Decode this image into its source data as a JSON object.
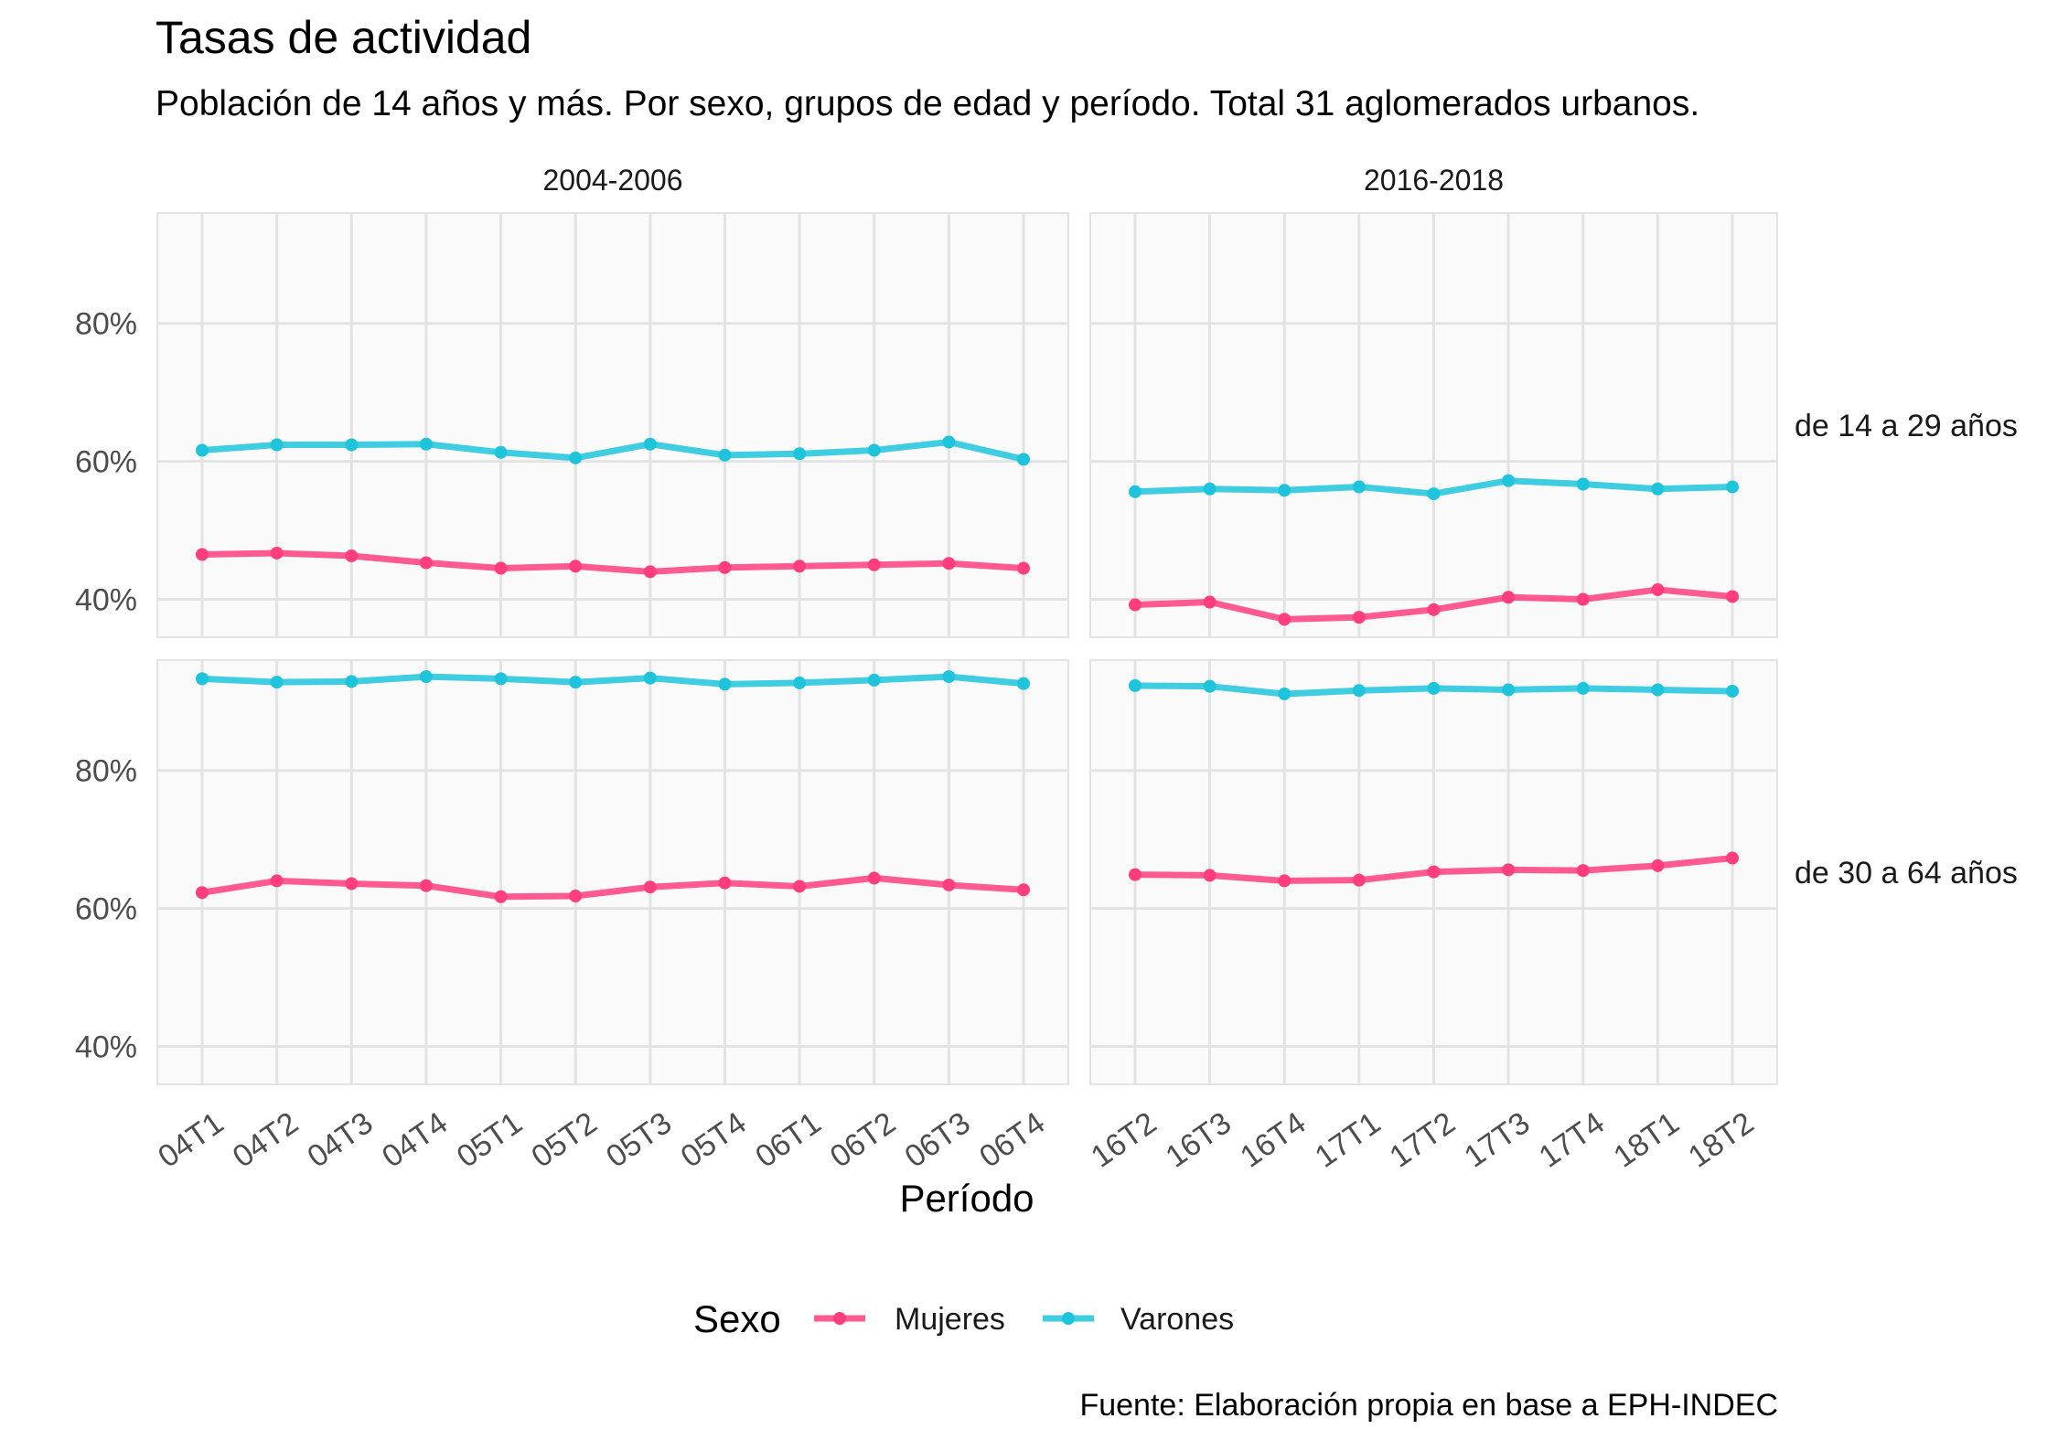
{
  "chart_data": {
    "type": "line",
    "title": "Tasas de actividad",
    "subtitle": "Población de 14 años y más. Por sexo, grupos de edad y período. Total 31 aglomerados urbanos.",
    "xlabel": "Período",
    "ylabel": "",
    "caption": "Fuente: Elaboración propia en base a EPH-INDEC",
    "legend": {
      "title": "Sexo",
      "position": "bottom"
    },
    "y_ticks": [
      "40%",
      "60%",
      "80%"
    ],
    "y_tick_values": [
      40,
      60,
      80
    ],
    "grid": true,
    "series_colors": {
      "Mujeres": "#ff3d7f",
      "Varones": "#1ec4dc"
    },
    "columns": [
      {
        "label": "2004-2006",
        "categories": [
          "04T1",
          "04T2",
          "04T3",
          "04T4",
          "05T1",
          "05T2",
          "05T3",
          "05T4",
          "06T1",
          "06T2",
          "06T3",
          "06T4"
        ]
      },
      {
        "label": "2016-2018",
        "categories": [
          "16T2",
          "16T3",
          "16T4",
          "17T1",
          "17T2",
          "17T3",
          "17T4",
          "18T1",
          "18T2"
        ]
      }
    ],
    "rows": [
      {
        "label": "de 14 a 29 años",
        "ylim": [
          34.5,
          96.0
        ]
      },
      {
        "label": "de 30 a 64 años",
        "ylim": [
          34.5,
          96.0
        ]
      }
    ],
    "panels": [
      {
        "row": 0,
        "col": 0,
        "series": [
          {
            "name": "Mujeres",
            "values": [
              46.5,
              46.7,
              46.3,
              45.3,
              44.5,
              44.8,
              44.0,
              44.6,
              44.8,
              45.0,
              45.2,
              44.5
            ]
          },
          {
            "name": "Varones",
            "values": [
              61.6,
              62.4,
              62.4,
              62.5,
              61.3,
              60.5,
              62.5,
              60.9,
              61.1,
              61.6,
              62.8,
              60.3
            ]
          }
        ]
      },
      {
        "row": 0,
        "col": 1,
        "series": [
          {
            "name": "Mujeres",
            "values": [
              39.2,
              39.6,
              37.1,
              37.4,
              38.5,
              40.3,
              40.0,
              41.4,
              40.4
            ]
          },
          {
            "name": "Varones",
            "values": [
              55.6,
              56.0,
              55.8,
              56.3,
              55.3,
              57.2,
              56.7,
              56.0,
              56.3
            ]
          }
        ]
      },
      {
        "row": 1,
        "col": 0,
        "series": [
          {
            "name": "Mujeres",
            "values": [
              62.3,
              64.0,
              63.6,
              63.3,
              61.7,
              61.8,
              63.1,
              63.7,
              63.2,
              64.4,
              63.4,
              62.7
            ]
          },
          {
            "name": "Varones",
            "values": [
              93.3,
              92.8,
              92.9,
              93.6,
              93.3,
              92.8,
              93.4,
              92.5,
              92.7,
              93.1,
              93.6,
              92.6
            ]
          }
        ]
      },
      {
        "row": 1,
        "col": 1,
        "series": [
          {
            "name": "Mujeres",
            "values": [
              64.9,
              64.8,
              64.0,
              64.1,
              65.3,
              65.6,
              65.5,
              66.2,
              67.3
            ]
          },
          {
            "name": "Varones",
            "values": [
              92.3,
              92.2,
              91.1,
              91.6,
              91.9,
              91.7,
              91.9,
              91.7,
              91.5
            ]
          }
        ]
      }
    ]
  }
}
